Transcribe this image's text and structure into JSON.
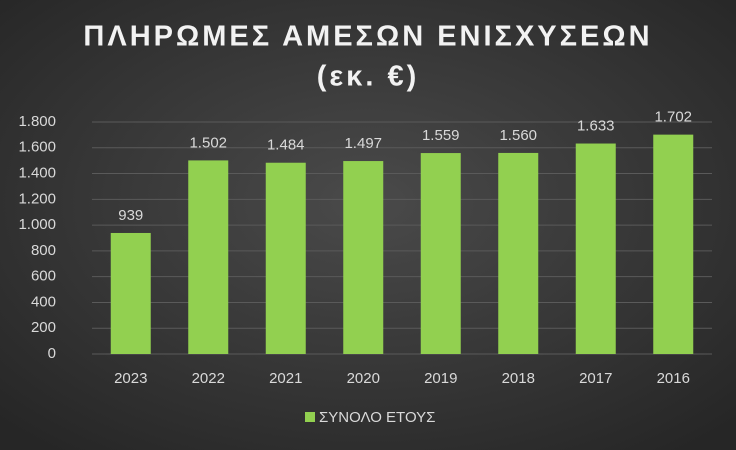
{
  "chart_data": {
    "type": "bar",
    "title": [
      "ΠΛΗΡΩΜΕΣ ΑΜΕΣΩΝ ΕΝΙΣΧΥΣΕΩΝ",
      "(εκ. €)"
    ],
    "categories": [
      "2023",
      "2022",
      "2021",
      "2020",
      "2019",
      "2018",
      "2017",
      "2016"
    ],
    "series": [
      {
        "name": "ΣΥΝΟΛΟ ΕΤΟΥΣ",
        "color": "#92d050",
        "values": [
          939,
          1502,
          1484,
          1497,
          1559,
          1560,
          1633,
          1702
        ],
        "value_labels": [
          "939",
          "1.502",
          "1.484",
          "1.497",
          "1.559",
          "1.560",
          "1.633",
          "1.702"
        ]
      }
    ],
    "ylim": [
      0,
      1800
    ],
    "yticks": [
      0,
      200,
      400,
      600,
      800,
      {
        "value": 1000,
        "label": "1.000"
      },
      {
        "value": 1200,
        "label": "1.200"
      },
      {
        "value": 1400,
        "label": "1.400"
      },
      {
        "value": 1600,
        "label": "1.600"
      },
      {
        "value": 1800,
        "label": "1.800"
      }
    ],
    "grid": true,
    "legend": "bottom"
  }
}
